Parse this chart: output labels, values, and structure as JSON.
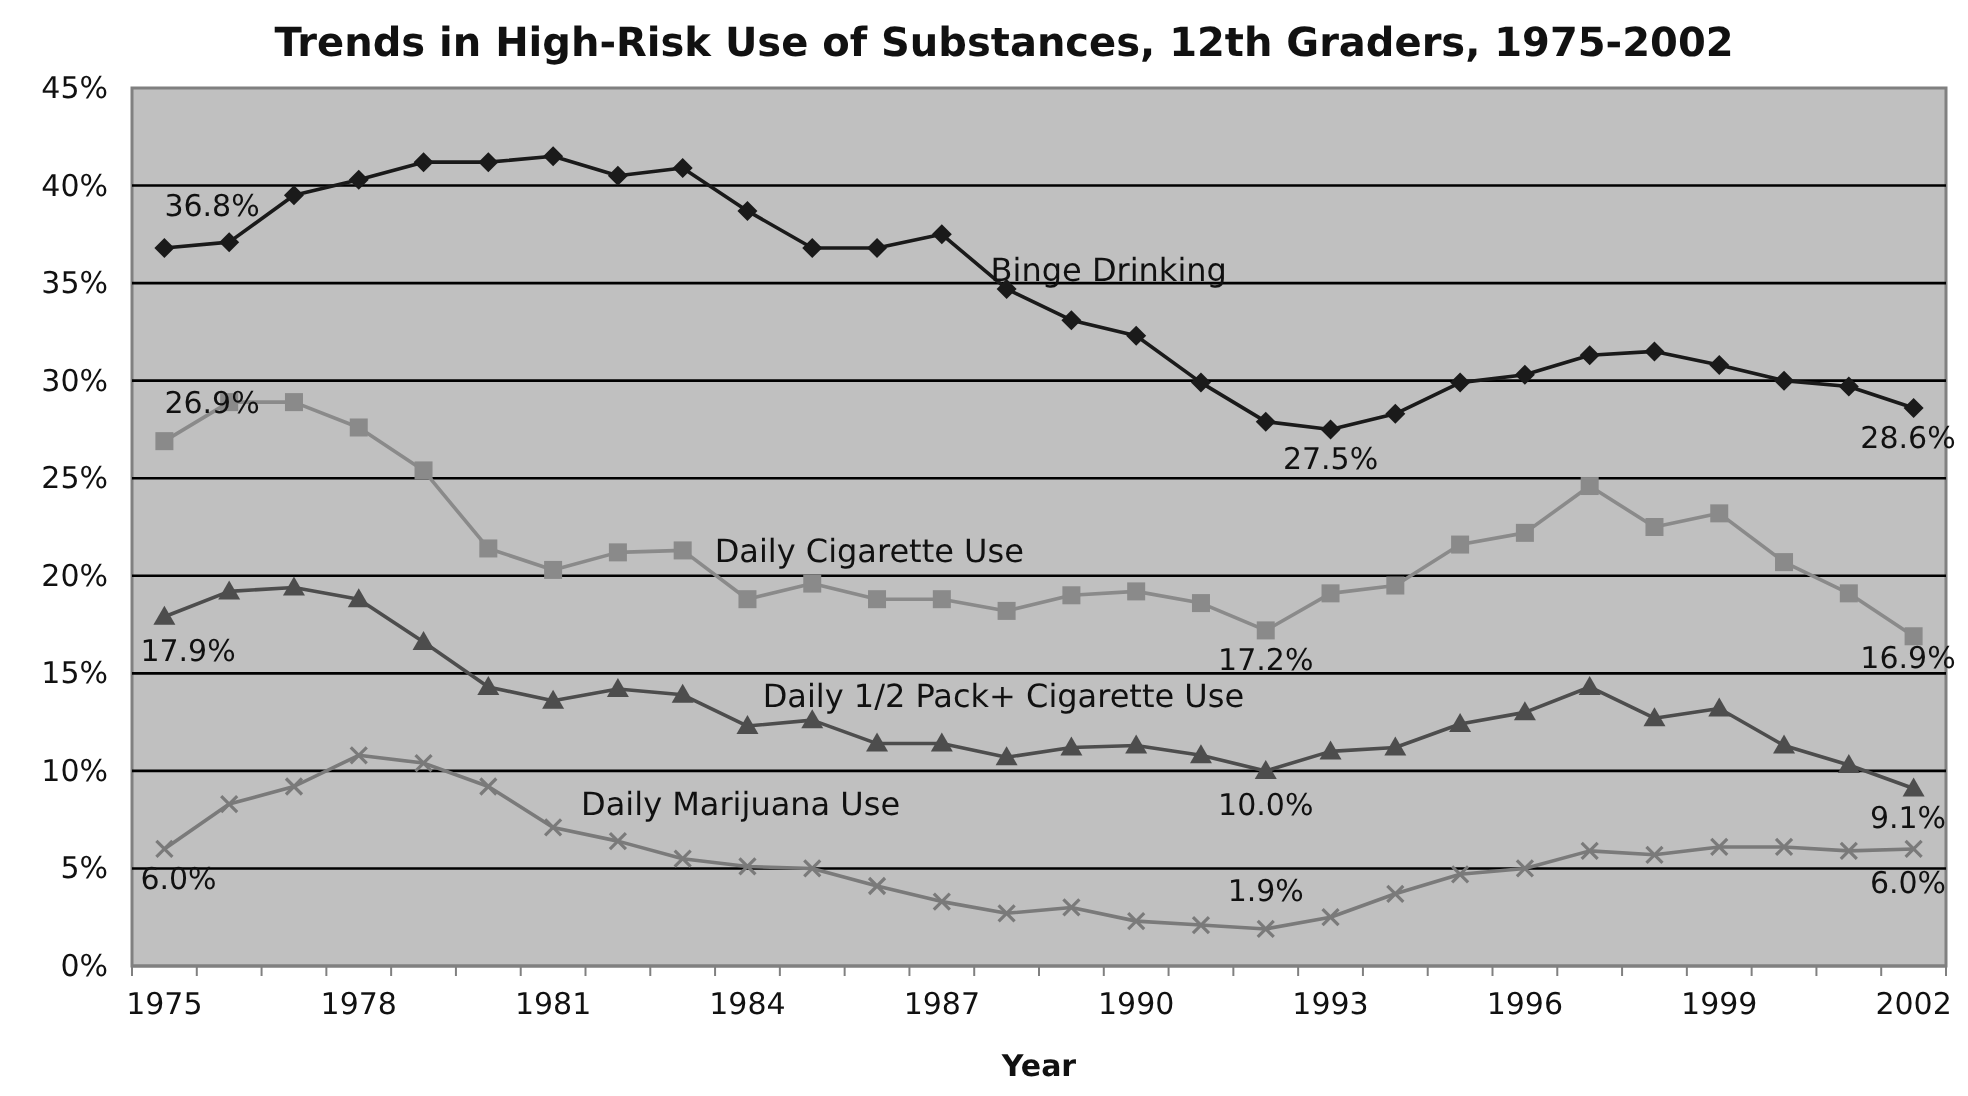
{
  "chart_data": {
    "type": "line",
    "title": "Trends in High-Risk Use of Substances, 12th Graders, 1975-2002",
    "xlabel": "Year",
    "categories": [
      "1975",
      null,
      null,
      "1978",
      null,
      null,
      "1981",
      null,
      null,
      "1984",
      null,
      null,
      "1987",
      null,
      null,
      "1990",
      null,
      null,
      "1993",
      null,
      null,
      "1996",
      null,
      null,
      "1999",
      null,
      null,
      "2002"
    ],
    "series": [
      {
        "name": "Binge Drinking",
        "color": "#1a1a1a",
        "marker": "diamond",
        "values": [
          36.8,
          37.1,
          39.5,
          40.3,
          41.2,
          41.2,
          41.5,
          40.5,
          40.9,
          38.7,
          36.8,
          36.8,
          37.5,
          34.7,
          33.1,
          32.3,
          29.9,
          27.9,
          27.5,
          28.3,
          29.9,
          30.3,
          31.3,
          31.5,
          30.8,
          30.0,
          29.7,
          28.6
        ]
      },
      {
        "name": "Daily Cigarette Use",
        "color": "#8a8a8a",
        "marker": "square",
        "values": [
          26.9,
          28.9,
          28.9,
          27.6,
          25.4,
          21.4,
          20.3,
          21.2,
          21.3,
          18.8,
          19.6,
          18.8,
          18.8,
          18.2,
          19.0,
          19.2,
          18.6,
          17.2,
          19.1,
          19.5,
          21.6,
          22.2,
          24.6,
          22.5,
          23.2,
          20.7,
          19.1,
          16.9
        ]
      },
      {
        "name": "Daily 1/2 Pack+ Cigarette Use",
        "color": "#4d4d4d",
        "marker": "triangle",
        "values": [
          17.9,
          19.2,
          19.4,
          18.8,
          16.6,
          14.3,
          13.6,
          14.2,
          13.9,
          12.3,
          12.6,
          11.4,
          11.4,
          10.7,
          11.2,
          11.3,
          10.8,
          10.0,
          11.0,
          11.2,
          12.4,
          13.0,
          14.3,
          12.7,
          13.2,
          11.3,
          10.3,
          9.1
        ]
      },
      {
        "name": "Daily Marijuana Use",
        "color": "#7a7a7a",
        "marker": "cross",
        "values": [
          6.0,
          8.3,
          9.2,
          10.8,
          10.4,
          9.2,
          7.1,
          6.4,
          5.5,
          5.1,
          5.0,
          4.1,
          3.3,
          2.7,
          3.0,
          2.3,
          2.1,
          1.9,
          2.5,
          3.7,
          4.7,
          5.0,
          5.9,
          5.7,
          6.1,
          6.1,
          5.9,
          6.0
        ]
      }
    ],
    "ylim": [
      0,
      45
    ],
    "yticks": [
      {
        "value": 0,
        "label": "0%"
      },
      {
        "value": 5,
        "label": "5%"
      },
      {
        "value": 10,
        "label": "10%"
      },
      {
        "value": 15,
        "label": "15%"
      },
      {
        "value": 20,
        "label": "20%"
      },
      {
        "value": 25,
        "label": "25%"
      },
      {
        "value": 30,
        "label": "30%"
      },
      {
        "value": 35,
        "label": "35%"
      },
      {
        "value": 40,
        "label": "40%"
      },
      {
        "value": 45,
        "label": "45%"
      }
    ],
    "grid": "y",
    "legend": false,
    "annotations": [
      {
        "text": "36.8%",
        "x": "1975",
        "y": 36.8
      },
      {
        "text": "27.5%",
        "x": "1993",
        "y": 27.5
      },
      {
        "text": "28.6%",
        "x": "2002",
        "y": 28.6
      },
      {
        "text": "26.9%",
        "x": "1975",
        "y": 26.9
      },
      {
        "text": "17.2%",
        "y": 17.2
      },
      {
        "text": "16.9%",
        "x": "2002",
        "y": 16.9
      },
      {
        "text": "17.9%",
        "x": "1975",
        "y": 17.9
      },
      {
        "text": "10.0%",
        "y": 10.0
      },
      {
        "text": "9.1%",
        "x": "2002",
        "y": 9.1
      },
      {
        "text": "6.0%",
        "x": "1975",
        "y": 6.0
      },
      {
        "text": "1.9%",
        "y": 1.9
      },
      {
        "text": "6.0%",
        "x": "2002",
        "y": 6.0
      }
    ]
  }
}
